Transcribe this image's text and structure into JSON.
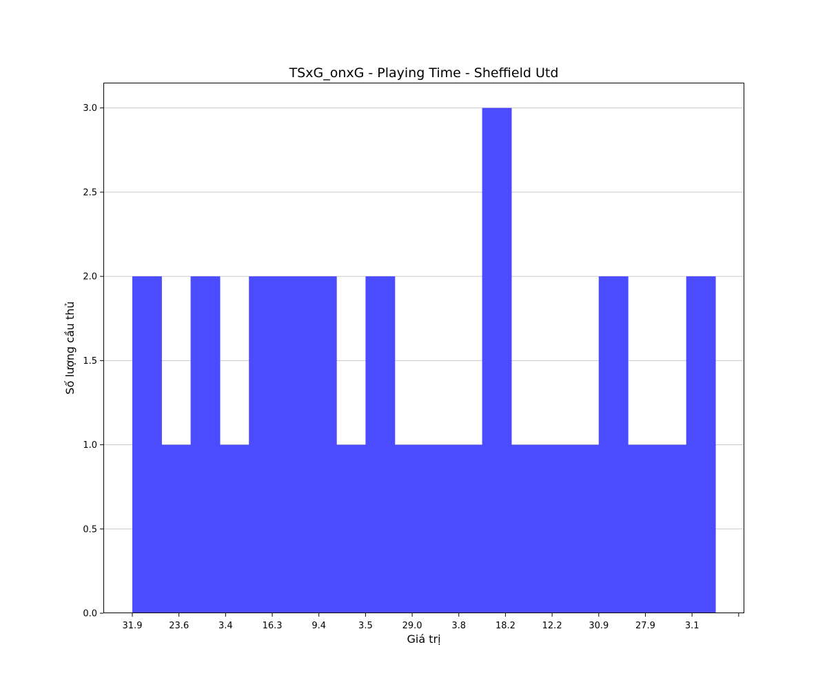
{
  "chart_data": {
    "type": "bar",
    "title": "TSxG_onxG - Playing Time - Sheffield Utd",
    "xlabel": "Giá trị",
    "ylabel": "Số lượng cầu thủ",
    "ylim": [
      0,
      3.15
    ],
    "yticks": [
      "0.0",
      "0.5",
      "1.0",
      "1.5",
      "2.0",
      "2.5",
      "3.0"
    ],
    "xticks": [
      "31.9",
      "23.6",
      "3.4",
      "16.3",
      "9.4",
      "3.5",
      "29.0",
      "3.8",
      "18.2",
      "12.2",
      "30.9",
      "27.9",
      "3.1",
      ""
    ],
    "bins": 20,
    "values": [
      2,
      1,
      2,
      1,
      2,
      2,
      2,
      1,
      2,
      1,
      1,
      1,
      3,
      1,
      1,
      1,
      2,
      1,
      1,
      2
    ],
    "bar_color": "#4b4bff",
    "grid": "y",
    "legend": "none"
  }
}
